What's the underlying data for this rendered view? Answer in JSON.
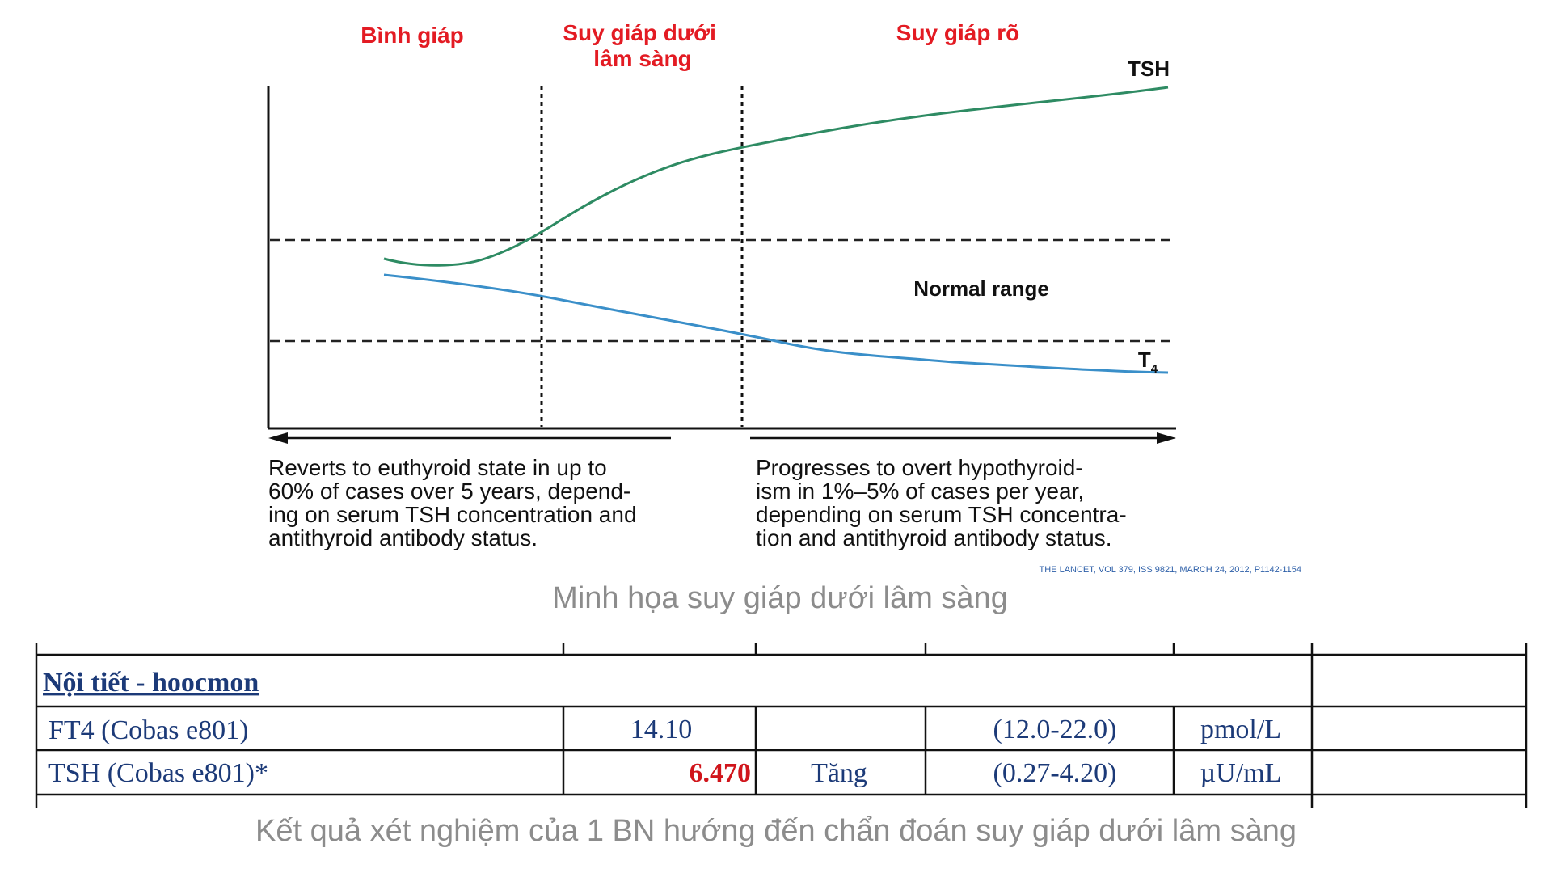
{
  "diagram": {
    "phases": [
      {
        "label": [
          "Bình giáp"
        ]
      },
      {
        "label": [
          "Suy giáp dưới",
          "lâm sàng"
        ]
      },
      {
        "label": [
          "Suy giáp rõ"
        ]
      }
    ],
    "curves": {
      "tsh": {
        "label": "TSH",
        "color": "#2e8b63"
      },
      "t4": {
        "label": "T",
        "subscript": "4",
        "color": "#3a8fc9"
      }
    },
    "normal_range_label": "Normal range",
    "left_note": [
      "Reverts to euthyroid state in up to",
      "60% of cases over 5 years, depend-",
      "ing on serum TSH concentration and",
      "antithyroid antibody status."
    ],
    "right_note": [
      "Progresses to overt hypothyroid-",
      "ism in 1%–5% of cases per year,",
      "depending on serum TSH concentra-",
      "tion and antithyroid antibody status."
    ],
    "citation": "THE LANCET, VOL 379, ISS 9821, MARCH 24, 2012, P1142-1154",
    "caption": "Minh họa suy giáp dưới lâm sàng"
  },
  "lab_table": {
    "section_title": "Nội tiết - hoocmon",
    "rows": [
      {
        "test": "FT4 (Cobas e801)",
        "value": "14.10",
        "flag": "",
        "range": "(12.0-22.0)",
        "unit": "pmol/L"
      },
      {
        "test": "TSH (Cobas e801)*",
        "value": "6.470",
        "flag": "Tăng",
        "range": "(0.27-4.20)",
        "unit": "µU/mL"
      }
    ],
    "colors": {
      "text": "#1c3a78",
      "abnormal": "#d0151b"
    }
  },
  "table_caption": "Kết quả xét nghiệm của 1 BN hướng đến chẩn đoán suy giáp dưới lâm sàng"
}
